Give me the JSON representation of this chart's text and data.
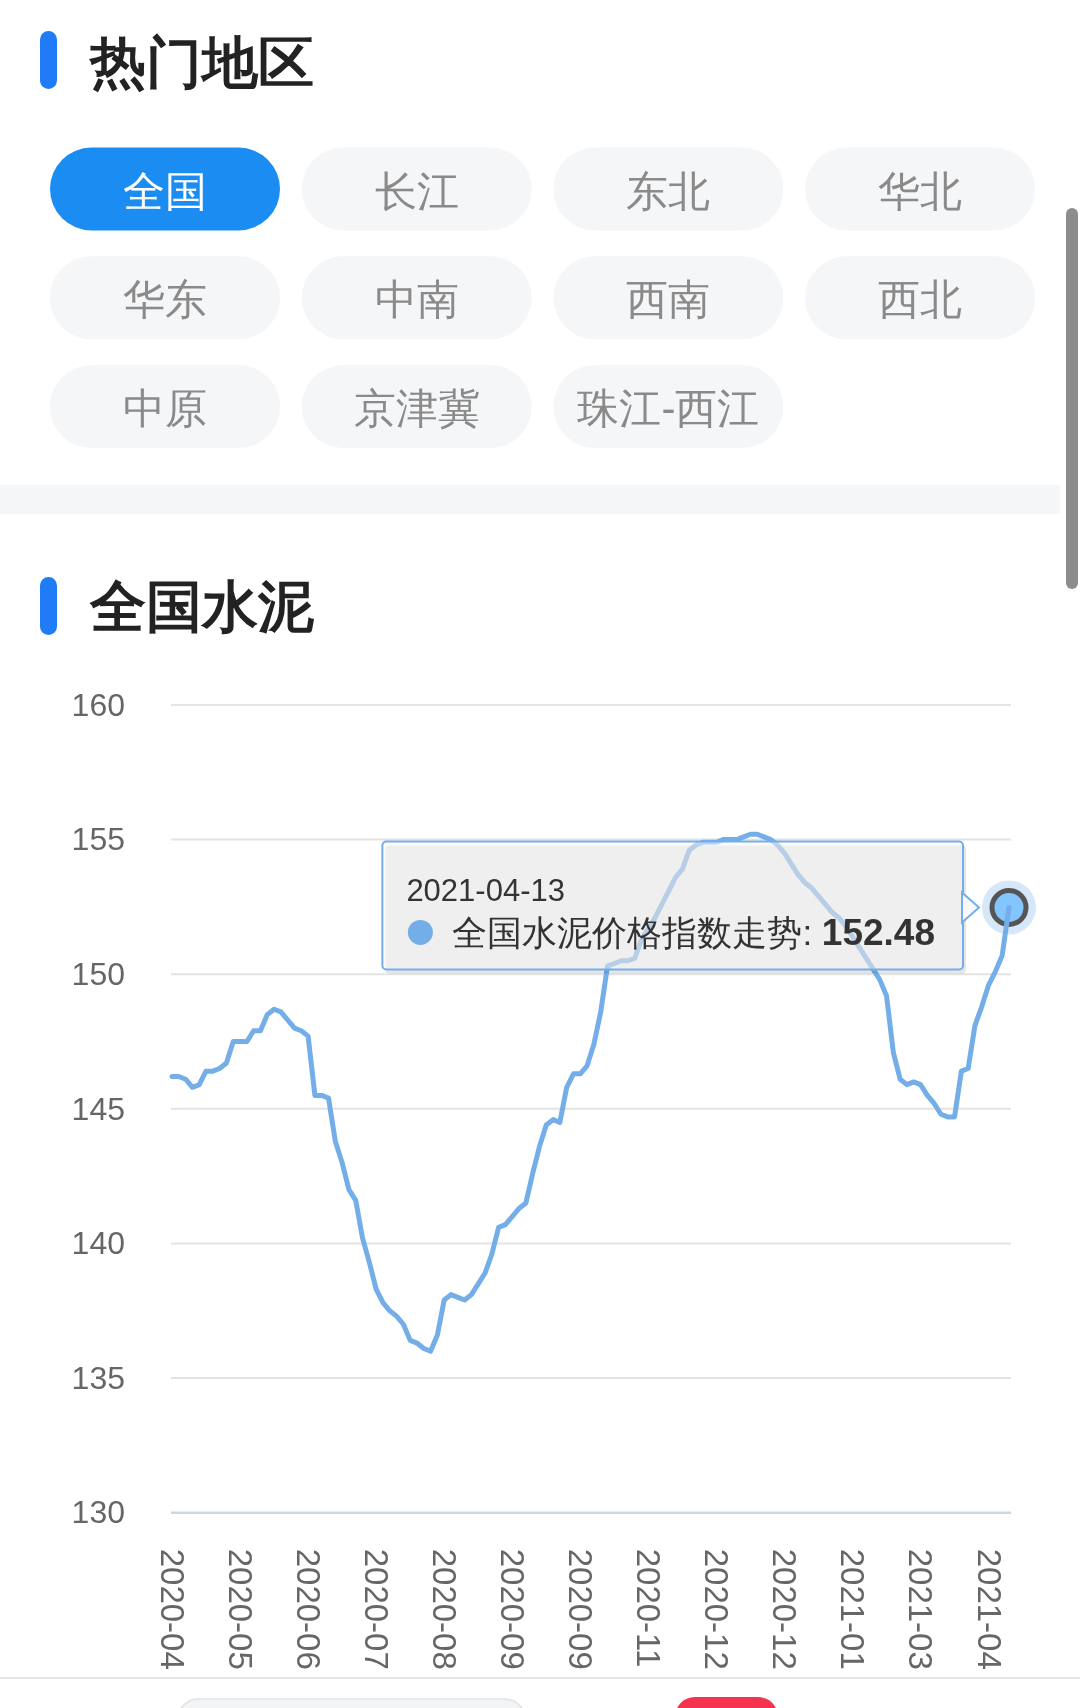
{
  "chart_data": [
    {
      "type": "other",
      "title": "热门地区",
      "categories": [
        "全国",
        "长江",
        "东北",
        "华北",
        "华东",
        "中南",
        "西南",
        "西北",
        "中原",
        "京津冀",
        "珠江-西江"
      ],
      "colors": [
        "#1a8cf2",
        "#f5f6f8",
        "#f5f6f8",
        "#f5f6f8",
        "#f5f6f8",
        "#f5f6f8",
        "#f5f6f8",
        "#f5f6f8",
        "#f5f6f8",
        "#f5f6f8",
        "#f5f6f8"
      ]
    },
    {
      "type": "line",
      "title": "全国水泥",
      "categories": [
        "2020-04",
        null,
        null,
        null,
        null,
        null,
        null,
        null,
        null,
        null,
        "2020-05",
        null,
        null,
        null,
        null,
        null,
        null,
        null,
        null,
        null,
        "2020-06",
        null,
        null,
        null,
        null,
        null,
        null,
        null,
        null,
        null,
        "2020-07",
        null,
        null,
        null,
        null,
        null,
        null,
        null,
        null,
        null,
        "2020-08",
        null,
        null,
        null,
        null,
        null,
        null,
        null,
        null,
        null,
        "2020-09",
        null,
        null,
        null,
        null,
        null,
        null,
        null,
        null,
        null,
        "2020-09",
        null,
        null,
        null,
        null,
        null,
        null,
        null,
        null,
        null,
        "2020-11",
        null,
        null,
        null,
        null,
        null,
        null,
        null,
        null,
        null,
        "2020-12",
        null,
        null,
        null,
        null,
        null,
        null,
        null,
        null,
        null,
        "2020-12",
        null,
        null,
        null,
        null,
        null,
        null,
        null,
        null,
        null,
        "2021-01",
        null,
        null,
        null,
        null,
        null,
        null,
        null,
        null,
        null,
        "2021-03",
        null,
        null,
        null,
        null,
        null,
        null,
        null,
        null,
        null,
        "2021-04",
        null,
        null,
        null
      ],
      "series": [
        {
          "color": "#74aee8",
          "values": [
            146.2,
            146.2,
            146.1,
            145.8,
            145.9,
            146.4,
            146.4,
            146.5,
            146.7,
            147.5,
            147.5,
            147.5,
            147.9,
            147.9,
            148.5,
            148.7,
            148.6,
            148.3,
            148.0,
            147.9,
            147.7,
            145.5,
            145.5,
            145.4,
            143.8,
            143.0,
            142.0,
            141.6,
            140.2,
            139.3,
            138.3,
            137.8,
            137.5,
            137.3,
            137.0,
            136.4,
            136.3,
            136.1,
            136.0,
            136.6,
            137.9,
            138.1,
            138.0,
            137.9,
            138.1,
            138.5,
            138.9,
            139.6,
            140.6,
            140.7,
            141.0,
            141.3,
            141.5,
            142.6,
            143.6,
            144.4,
            144.6,
            144.5,
            145.8,
            146.3,
            146.3,
            146.6,
            147.4,
            148.6,
            150.3,
            150.4,
            150.5,
            150.5,
            150.6,
            151.3,
            151.7,
            152.1,
            152.6,
            153.1,
            153.6,
            153.9,
            154.6,
            154.8,
            154.9,
            154.9,
            154.9,
            155.0,
            155.0,
            155.0,
            155.1,
            155.2,
            155.2,
            155.1,
            155.0,
            154.8,
            154.5,
            154.1,
            153.7,
            153.4,
            153.2,
            152.9,
            152.6,
            152.3,
            152.1,
            151.8,
            151.4,
            151.0,
            150.6,
            150.2,
            149.8,
            149.2,
            147.1,
            146.1,
            145.9,
            146.0,
            145.9,
            145.5,
            145.2,
            144.8,
            144.7,
            144.7,
            146.4,
            146.5,
            148.1,
            148.8,
            149.6,
            150.1,
            150.7,
            152.48
          ]
        }
      ],
      "ylim": [
        130,
        160
      ],
      "yticks": [
        130,
        135,
        140,
        145,
        150,
        155,
        160
      ],
      "grid": "y",
      "annotations": [
        "2021-04-13",
        "全国水泥价格指数走势: 152.48"
      ]
    }
  ]
}
